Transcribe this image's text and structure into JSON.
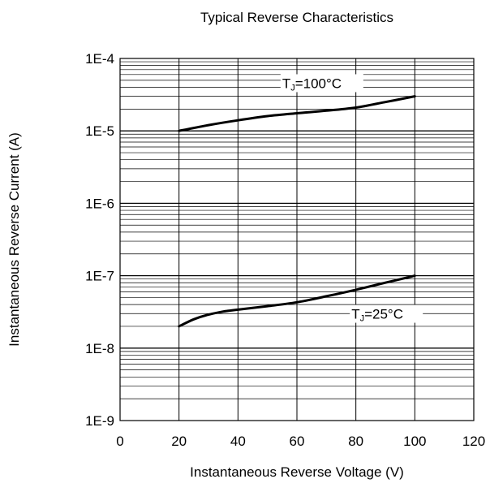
{
  "chart_data": {
    "type": "line",
    "title": "Typical Reverse Characteristics",
    "xlabel": "Instantaneous Reverse Voltage (V)",
    "ylabel": "Instantaneous Reverse Current (A)",
    "xlim": [
      0,
      120
    ],
    "ylim": [
      1e-09,
      0.0001
    ],
    "yscale": "log",
    "grid": true,
    "x_ticks": [
      "0",
      "20",
      "40",
      "60",
      "80",
      "100",
      "120"
    ],
    "y_ticks": [
      "1E-9",
      "1E-8",
      "1E-7",
      "1E-6",
      "1E-5",
      "1E-4"
    ],
    "series": [
      {
        "name": "TJ=100°C",
        "label_main": "T",
        "label_sub": "J",
        "label_rest": "=100°C",
        "x": [
          20,
          30,
          40,
          50,
          60,
          70,
          80,
          90,
          100
        ],
        "y": [
          1e-05,
          1.2e-05,
          1.4e-05,
          1.6e-05,
          1.75e-05,
          1.9e-05,
          2.1e-05,
          2.5e-05,
          3e-05
        ]
      },
      {
        "name": "TJ=25°C",
        "label_main": "T",
        "label_sub": "J",
        "label_rest": "=25°C",
        "x": [
          20,
          25,
          30,
          35,
          40,
          50,
          60,
          70,
          80,
          90,
          100
        ],
        "y": [
          2e-08,
          2.5e-08,
          2.9e-08,
          3.2e-08,
          3.4e-08,
          3.8e-08,
          4.3e-08,
          5.2e-08,
          6.4e-08,
          8e-08,
          1e-07
        ]
      }
    ]
  }
}
